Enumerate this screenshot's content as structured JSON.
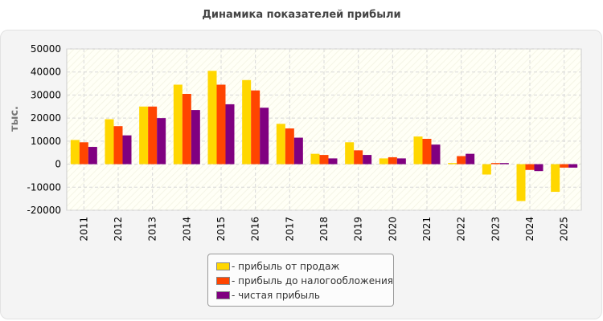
{
  "chart_data": {
    "type": "bar",
    "title": "Динамика показателей прибыли",
    "ylabel": "тыс.",
    "xlabel": "",
    "ylim": [
      -20000,
      50000
    ],
    "yticks": [
      -20000,
      -10000,
      0,
      10000,
      20000,
      30000,
      40000,
      50000
    ],
    "grid": true,
    "legend_position": "bottom",
    "categories": [
      "2011",
      "2012",
      "2013",
      "2014",
      "2015",
      "2016",
      "2017",
      "2018",
      "2019",
      "2020",
      "2021",
      "2022",
      "2023",
      "2024",
      "2025"
    ],
    "series": [
      {
        "name": "прибыль от продаж",
        "color": "#ffd700",
        "values": [
          10500,
          19500,
          25000,
          34500,
          40500,
          36500,
          17500,
          4500,
          9500,
          2500,
          12000,
          500,
          -4500,
          -16000,
          -12000
        ]
      },
      {
        "name": "прибыль до налогообложения",
        "color": "#ff4500",
        "values": [
          9500,
          16500,
          25000,
          30500,
          34500,
          32000,
          15500,
          4000,
          6000,
          3000,
          11000,
          3500,
          500,
          -2500,
          -1500
        ]
      },
      {
        "name": "чистая прибыль",
        "color": "#800080",
        "values": [
          7500,
          12500,
          20000,
          23500,
          26000,
          24500,
          11500,
          2500,
          4000,
          2500,
          8500,
          4500,
          500,
          -3000,
          -1500
        ]
      }
    ]
  }
}
